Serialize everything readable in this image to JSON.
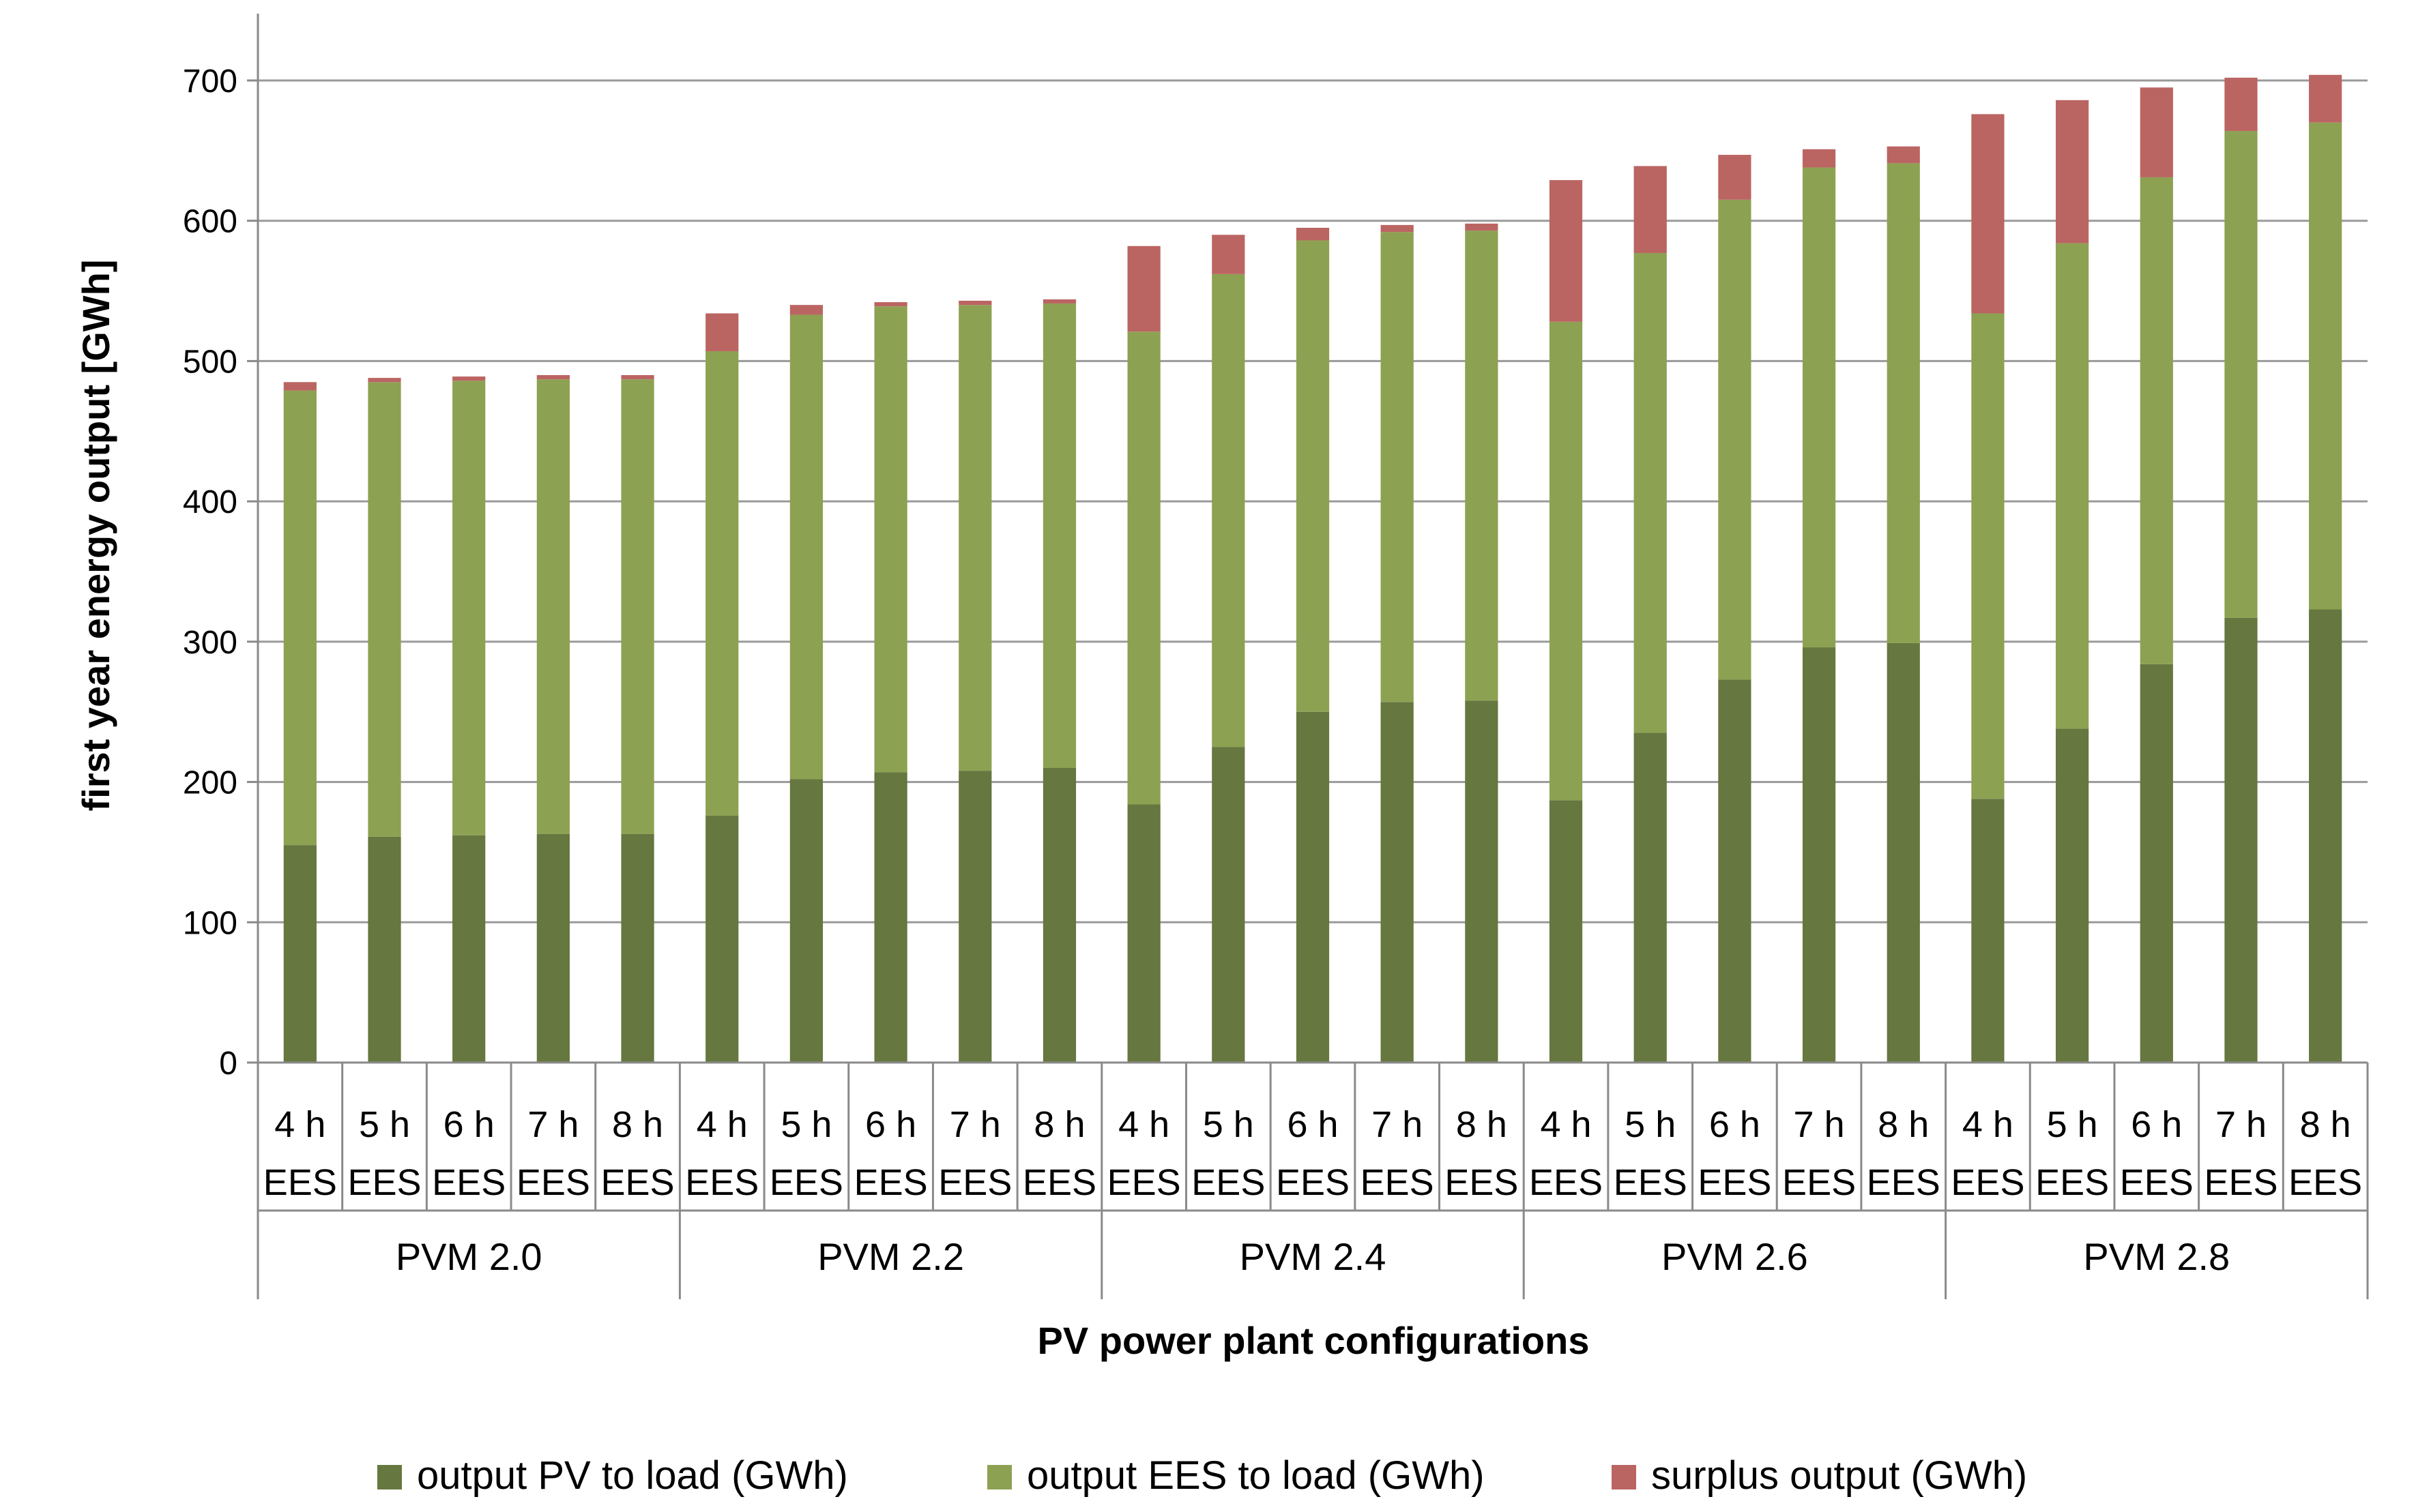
{
  "chart_data": {
    "type": "bar",
    "stacked": true,
    "xlabel": "PV power plant configurations",
    "ylabel": "first year energy output [GWh]",
    "ylim": [
      0,
      700
    ],
    "yticks": [
      0,
      100,
      200,
      300,
      400,
      500,
      600,
      700
    ],
    "grid": true,
    "legend_position": "bottom",
    "groups": [
      "PVM 2.0",
      "PVM 2.2",
      "PVM 2.4",
      "PVM 2.6",
      "PVM 2.8"
    ],
    "categories_per_group": [
      {
        "line1": "4 h",
        "line2": "EES"
      },
      {
        "line1": "5 h",
        "line2": "EES"
      },
      {
        "line1": "6 h",
        "line2": "EES"
      },
      {
        "line1": "7 h",
        "line2": "EES"
      },
      {
        "line1": "8 h",
        "line2": "EES"
      }
    ],
    "series": [
      {
        "name": "output PV to load (GWh)",
        "color": "#66773f",
        "values": [
          155,
          161,
          162,
          163,
          163,
          176,
          202,
          207,
          208,
          210,
          184,
          225,
          250,
          257,
          258,
          187,
          235,
          273,
          296,
          299,
          188,
          238,
          284,
          317,
          323
        ]
      },
      {
        "name": "output EES to load (GWh)",
        "color": "#8da152",
        "values": [
          324,
          324,
          324,
          324,
          324,
          331,
          331,
          332,
          332,
          331,
          337,
          337,
          336,
          335,
          335,
          341,
          342,
          342,
          342,
          342,
          346,
          346,
          347,
          347,
          347
        ]
      },
      {
        "name": "surplus output (GWh)",
        "color": "#bb6563",
        "values": [
          6,
          3,
          3,
          3,
          3,
          27,
          7,
          3,
          3,
          3,
          61,
          28,
          9,
          5,
          5,
          101,
          62,
          32,
          13,
          12,
          142,
          102,
          64,
          38,
          34
        ]
      }
    ]
  }
}
